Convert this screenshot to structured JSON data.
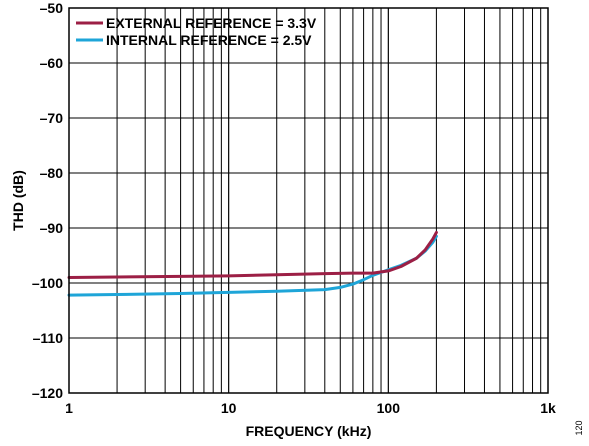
{
  "chart_data": {
    "type": "line",
    "title": "",
    "xlabel": "FREQUENCY (kHz)",
    "ylabel": "THD (dB)",
    "x_scale": "log",
    "xlim": [
      1,
      1000
    ],
    "ylim": [
      -120,
      -50
    ],
    "x_ticks": [
      {
        "value": 1,
        "label": "1"
      },
      {
        "value": 10,
        "label": "10"
      },
      {
        "value": 100,
        "label": "100"
      },
      {
        "value": 1000,
        "label": "1k"
      }
    ],
    "y_ticks": [
      {
        "value": -50,
        "label": "–50"
      },
      {
        "value": -60,
        "label": "–60"
      },
      {
        "value": -70,
        "label": "–70"
      },
      {
        "value": -80,
        "label": "–80"
      },
      {
        "value": -90,
        "label": "–90"
      },
      {
        "value": -100,
        "label": "–100"
      },
      {
        "value": -110,
        "label": "–110"
      },
      {
        "value": -120,
        "label": "–120"
      }
    ],
    "grid": true,
    "legend_position": "top-left",
    "series": [
      {
        "name": "EXTERNAL REFERENCE = 3.3V",
        "color": "#9c1f45",
        "x": [
          1,
          2,
          5,
          10,
          20,
          40,
          60,
          80,
          100,
          120,
          150,
          170,
          190,
          200
        ],
        "y": [
          -99.0,
          -98.9,
          -98.8,
          -98.7,
          -98.5,
          -98.3,
          -98.2,
          -98.2,
          -97.8,
          -97.0,
          -95.5,
          -94.0,
          -92.0,
          -90.8
        ]
      },
      {
        "name": "INTERNAL REFERENCE = 2.5V",
        "color": "#1ea5d8",
        "x": [
          1,
          2,
          5,
          10,
          20,
          40,
          50,
          60,
          70,
          80,
          100,
          120,
          150,
          170,
          190,
          200
        ],
        "y": [
          -102.2,
          -102.1,
          -101.9,
          -101.7,
          -101.5,
          -101.2,
          -100.8,
          -100.2,
          -99.4,
          -98.6,
          -97.6,
          -96.8,
          -95.5,
          -94.2,
          -92.6,
          -91.5
        ]
      }
    ]
  },
  "figure_number": "120"
}
